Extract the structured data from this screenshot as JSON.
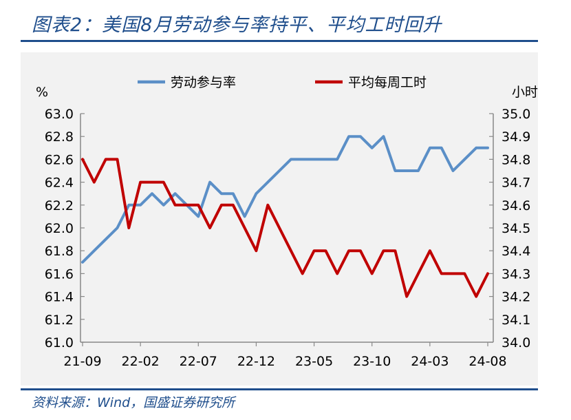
{
  "title": "图表2：美国8月劳动参与率持平、平均工时回升",
  "source": "资料来源：Wind，国盛证券研究所",
  "chart_data": {
    "type": "line",
    "left_axis_unit": "%",
    "right_axis_unit": "小时",
    "left_ylim": [
      61.0,
      63.0
    ],
    "right_ylim": [
      34.0,
      35.0
    ],
    "left_ticks": [
      "63.0",
      "62.8",
      "62.6",
      "62.4",
      "62.2",
      "62.0",
      "61.8",
      "61.6",
      "61.4",
      "61.2",
      "61.0"
    ],
    "right_ticks": [
      "35.0",
      "34.9",
      "34.8",
      "34.7",
      "34.6",
      "34.5",
      "34.4",
      "34.3",
      "34.2",
      "34.1",
      "34.0"
    ],
    "x_tick_labels": [
      "21-09",
      "22-02",
      "22-07",
      "22-12",
      "23-05",
      "23-10",
      "24-03",
      "24-08"
    ],
    "x_tick_positions": [
      0,
      5,
      10,
      15,
      20,
      25,
      30,
      35
    ],
    "categories": [
      "21-09",
      "21-10",
      "21-11",
      "21-12",
      "22-01",
      "22-02",
      "22-03",
      "22-04",
      "22-05",
      "22-06",
      "22-07",
      "22-08",
      "22-09",
      "22-10",
      "22-11",
      "22-12",
      "23-01",
      "23-02",
      "23-03",
      "23-04",
      "23-05",
      "23-06",
      "23-07",
      "23-08",
      "23-09",
      "23-10",
      "23-11",
      "23-12",
      "24-01",
      "24-02",
      "24-03",
      "24-04",
      "24-05",
      "24-06",
      "24-07",
      "24-08"
    ],
    "grid": false,
    "legend_position": "top",
    "series": [
      {
        "name": "劳动参与率",
        "axis": "left",
        "color": "#5b8fc7",
        "values": [
          61.7,
          61.8,
          61.9,
          62.0,
          62.2,
          62.2,
          62.3,
          62.2,
          62.3,
          62.2,
          62.1,
          62.4,
          62.3,
          62.3,
          62.1,
          62.3,
          62.4,
          62.5,
          62.6,
          62.6,
          62.6,
          62.6,
          62.6,
          62.8,
          62.8,
          62.7,
          62.8,
          62.5,
          62.5,
          62.5,
          62.7,
          62.7,
          62.5,
          62.6,
          62.7,
          62.7
        ]
      },
      {
        "name": "平均每周工时",
        "axis": "right",
        "color": "#c00000",
        "values": [
          34.8,
          34.7,
          34.8,
          34.8,
          34.5,
          34.7,
          34.7,
          34.7,
          34.6,
          34.6,
          34.6,
          34.5,
          34.6,
          34.6,
          34.5,
          34.4,
          34.6,
          34.5,
          34.4,
          34.3,
          34.4,
          34.4,
          34.3,
          34.4,
          34.4,
          34.3,
          34.4,
          34.4,
          34.2,
          34.3,
          34.4,
          34.3,
          34.3,
          34.3,
          34.2,
          34.3
        ]
      }
    ]
  }
}
